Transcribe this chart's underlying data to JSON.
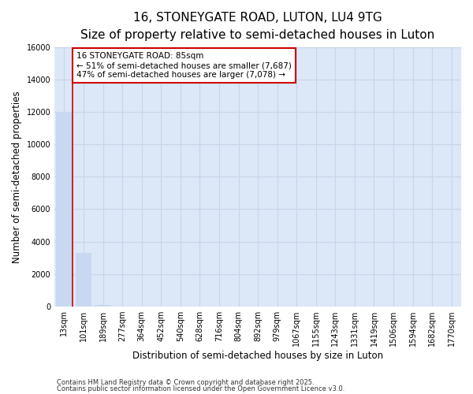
{
  "title": "16, STONEYGATE ROAD, LUTON, LU4 9TG",
  "subtitle": "Size of property relative to semi-detached houses in Luton",
  "xlabel": "Distribution of semi-detached houses by size in Luton",
  "ylabel": "Number of semi-detached properties",
  "footnote1": "Contains HM Land Registry data © Crown copyright and database right 2025.",
  "footnote2": "Contains public sector information licensed under the Open Government Licence v3.0.",
  "annotation_title": "16 STONEYGATE ROAD: 85sqm",
  "annotation_line1": "← 51% of semi-detached houses are smaller (7,687)",
  "annotation_line2": "47% of semi-detached houses are larger (7,078) →",
  "property_bin_index": 0,
  "categories": [
    "13sqm",
    "101sqm",
    "189sqm",
    "277sqm",
    "364sqm",
    "452sqm",
    "540sqm",
    "628sqm",
    "716sqm",
    "804sqm",
    "892sqm",
    "979sqm",
    "1067sqm",
    "1155sqm",
    "1243sqm",
    "1331sqm",
    "1419sqm",
    "1506sqm",
    "1594sqm",
    "1682sqm",
    "1770sqm"
  ],
  "values": [
    12000,
    3300,
    100,
    0,
    0,
    0,
    0,
    0,
    0,
    0,
    0,
    0,
    0,
    0,
    0,
    0,
    0,
    0,
    0,
    0,
    0
  ],
  "bar_color": "#c8d8f0",
  "property_line_color": "#cc0000",
  "box_edge_color": "#cc0000",
  "ylim": [
    0,
    16000
  ],
  "yticks": [
    0,
    2000,
    4000,
    6000,
    8000,
    10000,
    12000,
    14000,
    16000
  ],
  "grid_color": "#c8d4e8",
  "bg_color": "#dce8f8",
  "title_fontsize": 11,
  "subtitle_fontsize": 9,
  "tick_fontsize": 7,
  "axis_label_fontsize": 8.5,
  "annotation_fontsize": 7.5
}
